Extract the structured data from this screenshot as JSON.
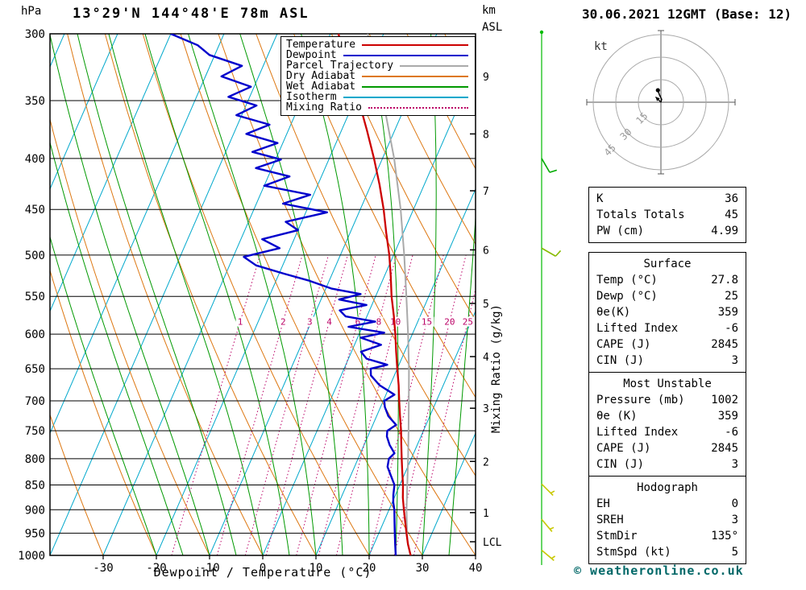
{
  "header": {
    "pressure_unit": "hPa",
    "title": "13°29'N 144°48'E 78m ASL",
    "km_label": "km",
    "asl_label": "ASL",
    "date": "30.06.2021 12GMT (Base: 12)"
  },
  "axes": {
    "xlabel": "Dewpoint / Temperature (°C)",
    "right_label": "Mixing Ratio (g/kg)",
    "x_ticks": [
      -30,
      -20,
      -10,
      0,
      10,
      20,
      30,
      40
    ],
    "pressure_ticks": [
      300,
      350,
      400,
      450,
      500,
      550,
      600,
      650,
      700,
      750,
      800,
      850,
      900,
      950,
      1000
    ],
    "km_ticks": [
      {
        "label": "9",
        "p": 331
      },
      {
        "label": "8",
        "p": 378
      },
      {
        "label": "7",
        "p": 431
      },
      {
        "label": "6",
        "p": 494
      },
      {
        "label": "5",
        "p": 559
      },
      {
        "label": "4",
        "p": 632
      },
      {
        "label": "3",
        "p": 712
      },
      {
        "label": "2",
        "p": 805
      },
      {
        "label": "1",
        "p": 906
      },
      {
        "label": "LCL",
        "p": 969
      }
    ]
  },
  "legend": [
    {
      "label": "Temperature",
      "color": "#cc0000",
      "style": "solid"
    },
    {
      "label": "Dewpoint",
      "color": "#0000cc",
      "style": "solid"
    },
    {
      "label": "Parcel Trajectory",
      "color": "#aaaaaa",
      "style": "solid"
    },
    {
      "label": "Dry Adiabat",
      "color": "#dd7711",
      "style": "solid"
    },
    {
      "label": "Wet Adiabat",
      "color": "#009900",
      "style": "solid"
    },
    {
      "label": "Isotherm",
      "color": "#00a8cc",
      "style": "solid"
    },
    {
      "label": "Mixing Ratio",
      "color": "#bb0066",
      "style": "dotted"
    }
  ],
  "chart_data": {
    "type": "skewt-log-p",
    "title": "13°29'N 144°48'E 78m ASL",
    "pressure_range_hpa": [
      300,
      1000
    ],
    "temp_axis_range_c": [
      -40,
      40
    ],
    "scale": "log-pressure, skewed temperature",
    "mixing_ratio_lines_gkg": [
      1,
      2,
      3,
      4,
      6,
      8,
      10,
      15,
      20,
      25
    ],
    "isotherm_step_c": 10,
    "dry_adiabat_step_c": 10,
    "wet_adiabat_step_c": 5,
    "series": [
      {
        "name": "Temperature",
        "color": "#cc0000",
        "units": "[hPa, °C]",
        "points": [
          [
            1000,
            27.8
          ],
          [
            975,
            26.4
          ],
          [
            950,
            25.2
          ],
          [
            925,
            24
          ],
          [
            900,
            22.8
          ],
          [
            875,
            21.6
          ],
          [
            850,
            20.6
          ],
          [
            825,
            19.4
          ],
          [
            800,
            18.2
          ],
          [
            775,
            17
          ],
          [
            750,
            15.8
          ],
          [
            725,
            14.4
          ],
          [
            700,
            13
          ],
          [
            675,
            11.6
          ],
          [
            650,
            10
          ],
          [
            625,
            8.4
          ],
          [
            600,
            6.8
          ],
          [
            575,
            5
          ],
          [
            550,
            3
          ],
          [
            525,
            1.2
          ],
          [
            500,
            -0.8
          ],
          [
            475,
            -3.2
          ],
          [
            450,
            -5.6
          ],
          [
            425,
            -8.4
          ],
          [
            400,
            -11.6
          ],
          [
            375,
            -15.2
          ],
          [
            350,
            -19.2
          ],
          [
            325,
            -23.6
          ],
          [
            300,
            -28.5
          ]
        ]
      },
      {
        "name": "Dewpoint",
        "color": "#0000cc",
        "units": "[hPa, °C]",
        "points": [
          [
            1000,
            25
          ],
          [
            990,
            24.6
          ],
          [
            975,
            24
          ],
          [
            960,
            23.4
          ],
          [
            950,
            23
          ],
          [
            925,
            22
          ],
          [
            900,
            21
          ],
          [
            885,
            20.2
          ],
          [
            870,
            19.6
          ],
          [
            850,
            19
          ],
          [
            830,
            17.4
          ],
          [
            815,
            16.2
          ],
          [
            800,
            15.8
          ],
          [
            790,
            16.4
          ],
          [
            775,
            14.8
          ],
          [
            760,
            13.6
          ],
          [
            750,
            13.2
          ],
          [
            740,
            14.4
          ],
          [
            725,
            12.2
          ],
          [
            710,
            10.8
          ],
          [
            700,
            10.2
          ],
          [
            690,
            11.6
          ],
          [
            675,
            8
          ],
          [
            660,
            5.6
          ],
          [
            650,
            5
          ],
          [
            644,
            7.8
          ],
          [
            635,
            3.4
          ],
          [
            625,
            1.8
          ],
          [
            615,
            5
          ],
          [
            605,
            0.6
          ],
          [
            598,
            4.6
          ],
          [
            590,
            -2.6
          ],
          [
            583,
            2
          ],
          [
            576,
            -4
          ],
          [
            568,
            -5.6
          ],
          [
            561,
            -1
          ],
          [
            554,
            -6.6
          ],
          [
            547,
            -3
          ],
          [
            540,
            -9
          ],
          [
            530,
            -14
          ],
          [
            522,
            -19
          ],
          [
            512,
            -25
          ],
          [
            502,
            -28
          ],
          [
            492,
            -22
          ],
          [
            482,
            -26
          ],
          [
            472,
            -20
          ],
          [
            463,
            -23
          ],
          [
            453,
            -16
          ],
          [
            444,
            -25
          ],
          [
            435,
            -20.6
          ],
          [
            426,
            -30
          ],
          [
            417,
            -26
          ],
          [
            409,
            -33
          ],
          [
            401,
            -29
          ],
          [
            394,
            -35
          ],
          [
            386,
            -31
          ],
          [
            378,
            -37.6
          ],
          [
            370,
            -34
          ],
          [
            362,
            -41
          ],
          [
            354,
            -38
          ],
          [
            347,
            -44
          ],
          [
            339,
            -40.6
          ],
          [
            331,
            -47
          ],
          [
            323,
            -44
          ],
          [
            315,
            -51
          ],
          [
            308,
            -54
          ],
          [
            300,
            -60
          ]
        ]
      },
      {
        "name": "Parcel Trajectory",
        "color": "#aaaaaa",
        "units": "[hPa, °C]",
        "points": [
          [
            1000,
            27.8
          ],
          [
            969,
            26.1
          ],
          [
            950,
            25.3
          ],
          [
            900,
            23.3
          ],
          [
            850,
            21.4
          ],
          [
            800,
            19.4
          ],
          [
            750,
            17.2
          ],
          [
            700,
            14.8
          ],
          [
            650,
            12.2
          ],
          [
            600,
            9.2
          ],
          [
            550,
            5.8
          ],
          [
            500,
            2
          ],
          [
            450,
            -2.4
          ],
          [
            400,
            -7.8
          ],
          [
            350,
            -14.6
          ],
          [
            300,
            -23
          ]
        ]
      }
    ],
    "wind_barbs": [
      {
        "p": 400,
        "dir_deg": 150,
        "speed_kt": 10,
        "color": "#00aa00"
      },
      {
        "p": 492,
        "dir_deg": 120,
        "speed_kt": 10,
        "color": "#88bb00"
      },
      {
        "p": 848,
        "dir_deg": 135,
        "speed_kt": 5,
        "color": "#c8c800"
      },
      {
        "p": 920,
        "dir_deg": 140,
        "speed_kt": 5,
        "color": "#c8c800"
      },
      {
        "p": 988,
        "dir_deg": 130,
        "speed_kt": 5,
        "color": "#c8c800"
      }
    ],
    "lcl_pressure_hpa": 969
  },
  "hodograph": {
    "unit_label": "kt",
    "rings_kt": [
      15,
      30,
      45
    ],
    "trace_kt": [
      [
        0,
        0
      ],
      [
        0.5,
        2
      ],
      [
        -1,
        5
      ],
      [
        -2,
        8
      ]
    ],
    "storm_dir_deg": 135,
    "storm_speed_kt": 5
  },
  "tables": [
    {
      "title": null,
      "rows": [
        [
          "K",
          "36"
        ],
        [
          "Totals Totals",
          "45"
        ],
        [
          "PW (cm)",
          "4.99"
        ]
      ]
    },
    {
      "title": "Surface",
      "rows": [
        [
          "Temp (°C)",
          "27.8"
        ],
        [
          "Dewp (°C)",
          "25"
        ],
        [
          "θe(K)",
          "359"
        ],
        [
          "Lifted Index",
          "-6"
        ],
        [
          "CAPE (J)",
          "2845"
        ],
        [
          "CIN (J)",
          "3"
        ]
      ]
    },
    {
      "title": "Most Unstable",
      "rows": [
        [
          "Pressure (mb)",
          "1002"
        ],
        [
          "θe (K)",
          "359"
        ],
        [
          "Lifted Index",
          "-6"
        ],
        [
          "CAPE (J)",
          "2845"
        ],
        [
          "CIN (J)",
          "3"
        ]
      ]
    },
    {
      "title": "Hodograph",
      "rows": [
        [
          "EH",
          "0"
        ],
        [
          "SREH",
          "3"
        ],
        [
          "StmDir",
          "135°"
        ],
        [
          "StmSpd (kt)",
          "5"
        ]
      ]
    }
  ],
  "footer": {
    "copyright": "© weatheronline.co.uk"
  }
}
